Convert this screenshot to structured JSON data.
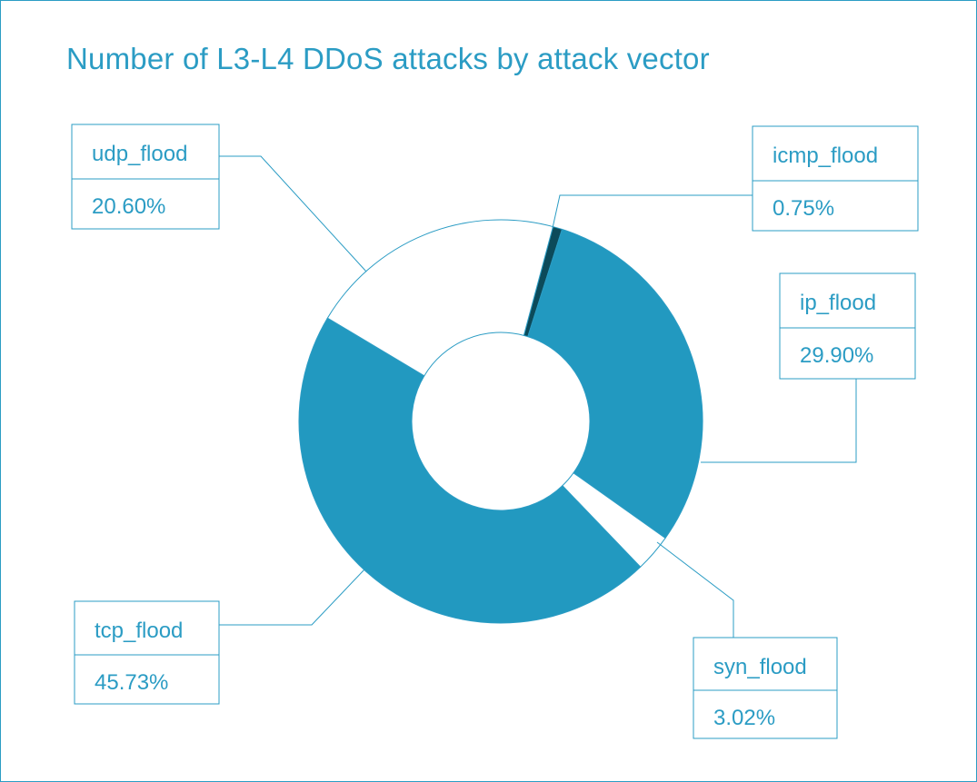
{
  "chart_data": {
    "type": "pie",
    "title": "Number of L3-L4 DDoS attacks by attack vector",
    "unit": "%",
    "slices": [
      {
        "name": "icmp_flood",
        "value": 0.75,
        "value_label": "0.75%",
        "color": "#0c4a5a"
      },
      {
        "name": "ip_flood",
        "value": 29.9,
        "value_label": "29.90%",
        "color": "#2299c0"
      },
      {
        "name": "syn_flood",
        "value": 3.02,
        "value_label": "3.02%",
        "color": "#ffffff"
      },
      {
        "name": "tcp_flood",
        "value": 45.73,
        "value_label": "45.73%",
        "color": "#2299c0"
      },
      {
        "name": "udp_flood",
        "value": 20.6,
        "value_label": "20.60%",
        "color": "#ffffff"
      }
    ]
  },
  "colors": {
    "accent": "#2b9cc4",
    "slice_outline": "#2b9cc4",
    "background": "#ffffff"
  }
}
